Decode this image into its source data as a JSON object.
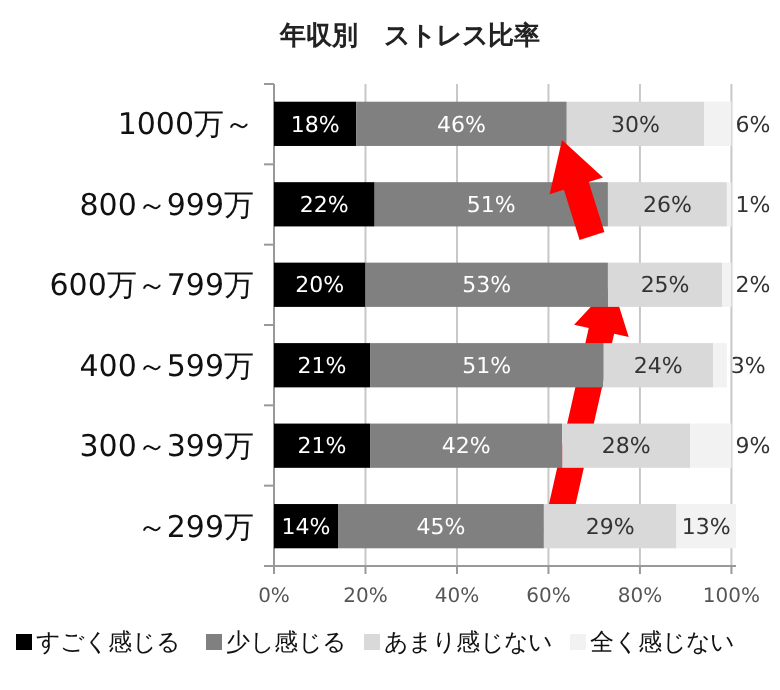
{
  "chart_data": {
    "type": "bar",
    "orientation": "horizontal",
    "stacked": true,
    "title": "年収別　ストレス比率",
    "categories": [
      "1000万～",
      "800～999万",
      "600万～799万",
      "400～599万",
      "300～399万",
      "～299万"
    ],
    "series": [
      {
        "name": "すごく感じる",
        "color": "#000000",
        "values": [
          18,
          22,
          20,
          21,
          21,
          14
        ],
        "value_labels": [
          "18%",
          "22%",
          "20%",
          "21%",
          "21%",
          "14%"
        ]
      },
      {
        "name": "少し感じる",
        "color": "#808080",
        "values": [
          46,
          51,
          53,
          51,
          42,
          45
        ],
        "value_labels": [
          "46%",
          "51%",
          "53%",
          "51%",
          "42%",
          "45%"
        ]
      },
      {
        "name": "あまり感じない",
        "color": "#d9d9d9",
        "values": [
          30,
          26,
          25,
          24,
          28,
          29
        ],
        "value_labels": [
          "30%",
          "26%",
          "25%",
          "24%",
          "28%",
          "29%"
        ]
      },
      {
        "name": "全く感じない",
        "color": "#f2f2f2",
        "values": [
          6,
          1,
          2,
          3,
          9,
          13
        ],
        "value_labels": [
          "6%",
          "1%",
          "2%",
          "3%",
          "9%",
          "13%"
        ]
      }
    ],
    "xlim": [
      0,
      101
    ],
    "xticks": [
      {
        "value": 0,
        "label": "0%"
      },
      {
        "value": 20,
        "label": "20%"
      },
      {
        "value": 40,
        "label": "40%"
      },
      {
        "value": 60,
        "label": "60%"
      },
      {
        "value": 80,
        "label": "80%"
      },
      {
        "value": 100,
        "label": "100%"
      }
    ],
    "grid": "x",
    "legend": "bottom"
  }
}
